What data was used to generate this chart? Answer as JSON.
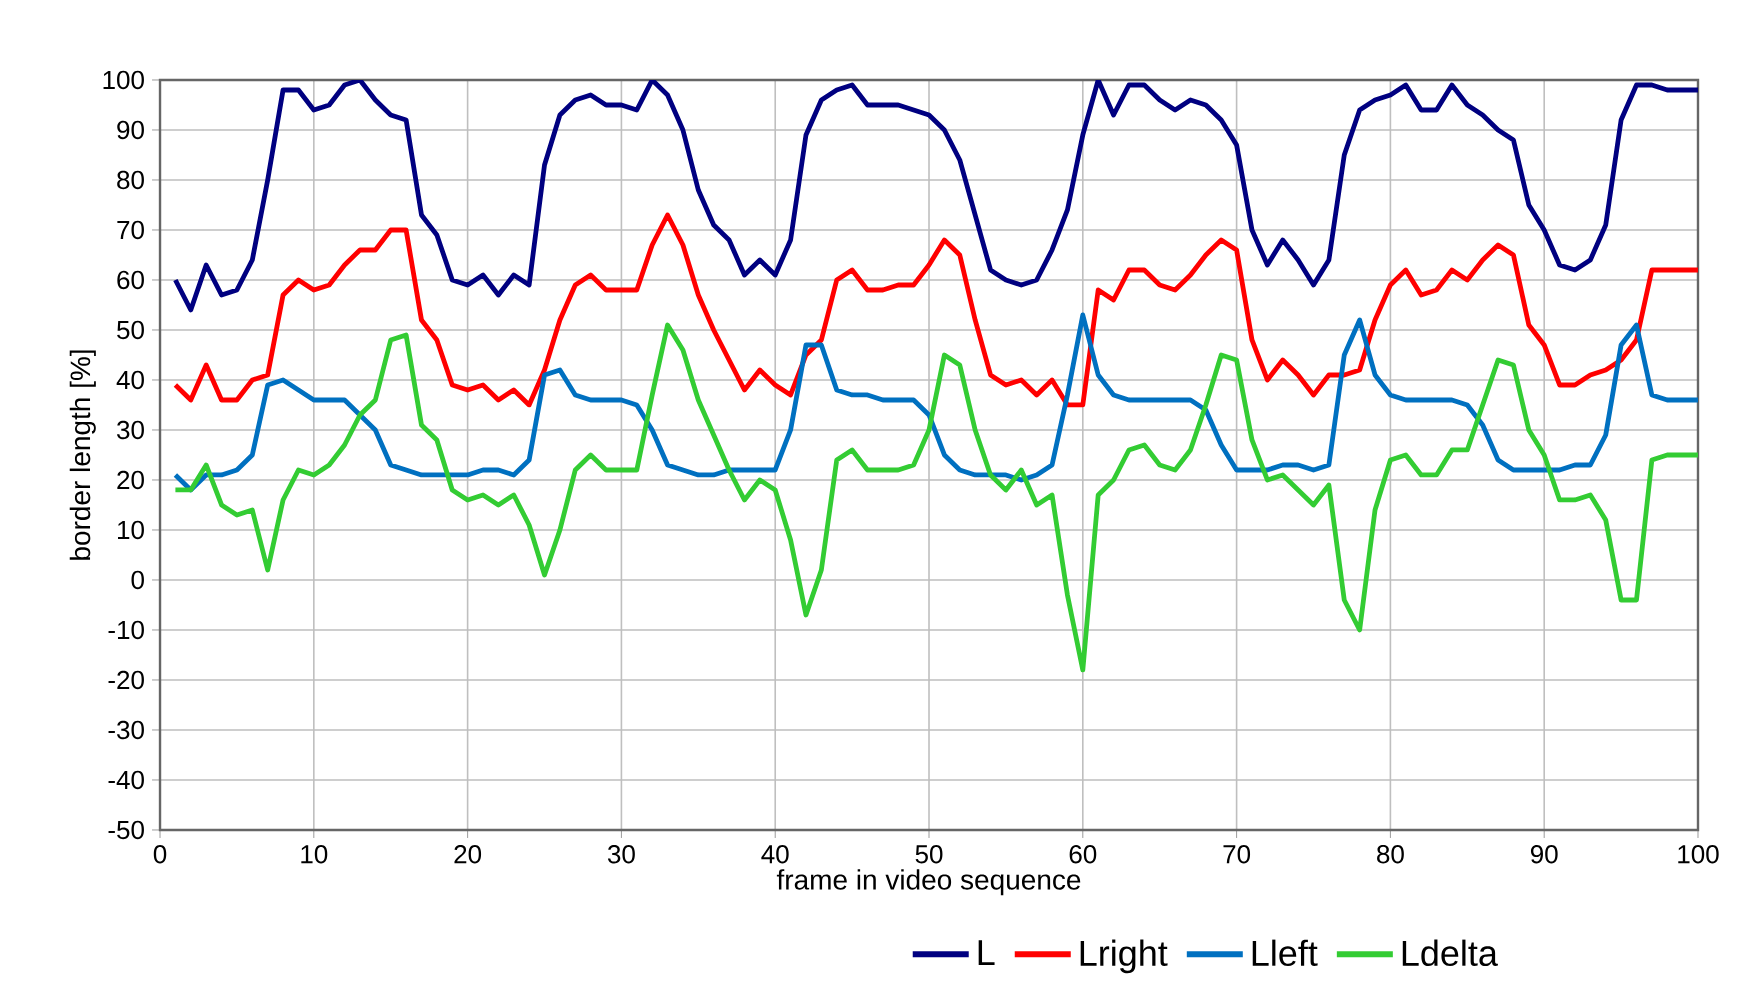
{
  "chart_data": {
    "type": "line",
    "xlabel": "frame in video sequence",
    "ylabel": "border length [%]",
    "x": [
      1,
      2,
      3,
      4,
      5,
      6,
      7,
      8,
      9,
      10,
      11,
      12,
      13,
      14,
      15,
      16,
      17,
      18,
      19,
      20,
      21,
      22,
      23,
      24,
      25,
      26,
      27,
      28,
      29,
      30,
      31,
      32,
      33,
      34,
      35,
      36,
      37,
      38,
      39,
      40,
      41,
      42,
      43,
      44,
      45,
      46,
      47,
      48,
      49,
      50,
      51,
      52,
      53,
      54,
      55,
      56,
      57,
      58,
      59,
      60,
      61,
      62,
      63,
      64,
      65,
      66,
      67,
      68,
      69,
      70,
      71,
      72,
      73,
      74,
      75,
      76,
      77,
      78,
      79,
      80,
      81,
      82,
      83,
      84,
      85,
      86,
      87,
      88,
      89,
      90,
      91,
      92,
      93,
      94,
      95,
      96,
      97,
      98,
      99,
      100
    ],
    "xlim": [
      0,
      100
    ],
    "ylim": [
      -50,
      100
    ],
    "xticks": [
      0,
      10,
      20,
      30,
      40,
      50,
      60,
      70,
      80,
      90,
      100
    ],
    "yticks": [
      -50,
      -40,
      -30,
      -20,
      -10,
      0,
      10,
      20,
      30,
      40,
      50,
      60,
      70,
      80,
      90,
      100
    ],
    "grid": true,
    "legend": "bottom",
    "marker": "none",
    "line_style": "solid",
    "series": [
      {
        "name": "L",
        "color": "#000080",
        "values": [
          60,
          54,
          63,
          57,
          58,
          64,
          80,
          98,
          98,
          94,
          95,
          99,
          100,
          96,
          93,
          92,
          73,
          69,
          60,
          59,
          61,
          57,
          61,
          59,
          83,
          93,
          96,
          97,
          95,
          95,
          94,
          100,
          97,
          90,
          78,
          71,
          68,
          61,
          64,
          61,
          68,
          89,
          96,
          98,
          99,
          95,
          95,
          95,
          94,
          93,
          90,
          84,
          73,
          62,
          60,
          59,
          60,
          66,
          74,
          89,
          100,
          93,
          99,
          99,
          96,
          94,
          96,
          95,
          92,
          87,
          70,
          63,
          68,
          64,
          59,
          64,
          85,
          94,
          96,
          97,
          99,
          94,
          94,
          99,
          95,
          93,
          90,
          88,
          75,
          70,
          63,
          62,
          64,
          71,
          92,
          99,
          99,
          98,
          98,
          98
        ]
      },
      {
        "name": "Lright",
        "color": "#ff0000",
        "values": [
          39,
          36,
          43,
          36,
          36,
          40,
          41,
          57,
          60,
          58,
          59,
          63,
          66,
          66,
          70,
          70,
          52,
          48,
          39,
          38,
          39,
          36,
          38,
          35,
          42,
          52,
          59,
          61,
          58,
          58,
          58,
          67,
          73,
          67,
          57,
          50,
          44,
          38,
          42,
          39,
          37,
          45,
          48,
          60,
          62,
          58,
          58,
          59,
          59,
          63,
          68,
          65,
          52,
          41,
          39,
          40,
          37,
          40,
          35,
          35,
          58,
          56,
          62,
          62,
          59,
          58,
          61,
          65,
          68,
          66,
          48,
          40,
          44,
          41,
          37,
          41,
          41,
          42,
          52,
          59,
          62,
          57,
          58,
          62,
          60,
          64,
          67,
          65,
          51,
          47,
          39,
          39,
          41,
          42,
          44,
          48,
          62,
          62,
          62,
          62
        ]
      },
      {
        "name": "Lleft",
        "color": "#0070c0",
        "values": [
          21,
          18,
          21,
          21,
          22,
          25,
          39,
          40,
          38,
          36,
          36,
          36,
          33,
          30,
          23,
          22,
          21,
          21,
          21,
          21,
          22,
          22,
          21,
          24,
          41,
          42,
          37,
          36,
          36,
          36,
          35,
          30,
          23,
          22,
          21,
          21,
          22,
          22,
          22,
          22,
          30,
          47,
          47,
          38,
          37,
          37,
          36,
          36,
          36,
          33,
          25,
          22,
          21,
          21,
          21,
          20,
          21,
          23,
          37,
          53,
          41,
          37,
          36,
          36,
          36,
          36,
          36,
          34,
          27,
          22,
          22,
          22,
          23,
          23,
          22,
          23,
          45,
          52,
          41,
          37,
          36,
          36,
          36,
          36,
          35,
          31,
          24,
          22,
          22,
          22,
          22,
          23,
          23,
          29,
          47,
          51,
          37,
          36,
          36,
          36
        ]
      },
      {
        "name": "Ldelta",
        "color": "#33cc33",
        "values": [
          18,
          18,
          23,
          15,
          13,
          14,
          2,
          16,
          22,
          21,
          23,
          27,
          33,
          36,
          48,
          49,
          31,
          28,
          18,
          16,
          17,
          15,
          17,
          11,
          1,
          10,
          22,
          25,
          22,
          22,
          22,
          37,
          51,
          46,
          36,
          29,
          22,
          16,
          20,
          18,
          8,
          -7,
          2,
          24,
          26,
          22,
          22,
          22,
          23,
          30,
          45,
          43,
          30,
          21,
          18,
          22,
          15,
          17,
          -3,
          -18,
          17,
          20,
          26,
          27,
          23,
          22,
          26,
          35,
          45,
          44,
          28,
          20,
          21,
          18,
          15,
          19,
          -4,
          -10,
          14,
          24,
          25,
          21,
          21,
          26,
          26,
          35,
          44,
          43,
          30,
          25,
          16,
          16,
          17,
          12,
          -4,
          -4,
          24,
          25,
          25,
          25
        ]
      }
    ]
  }
}
